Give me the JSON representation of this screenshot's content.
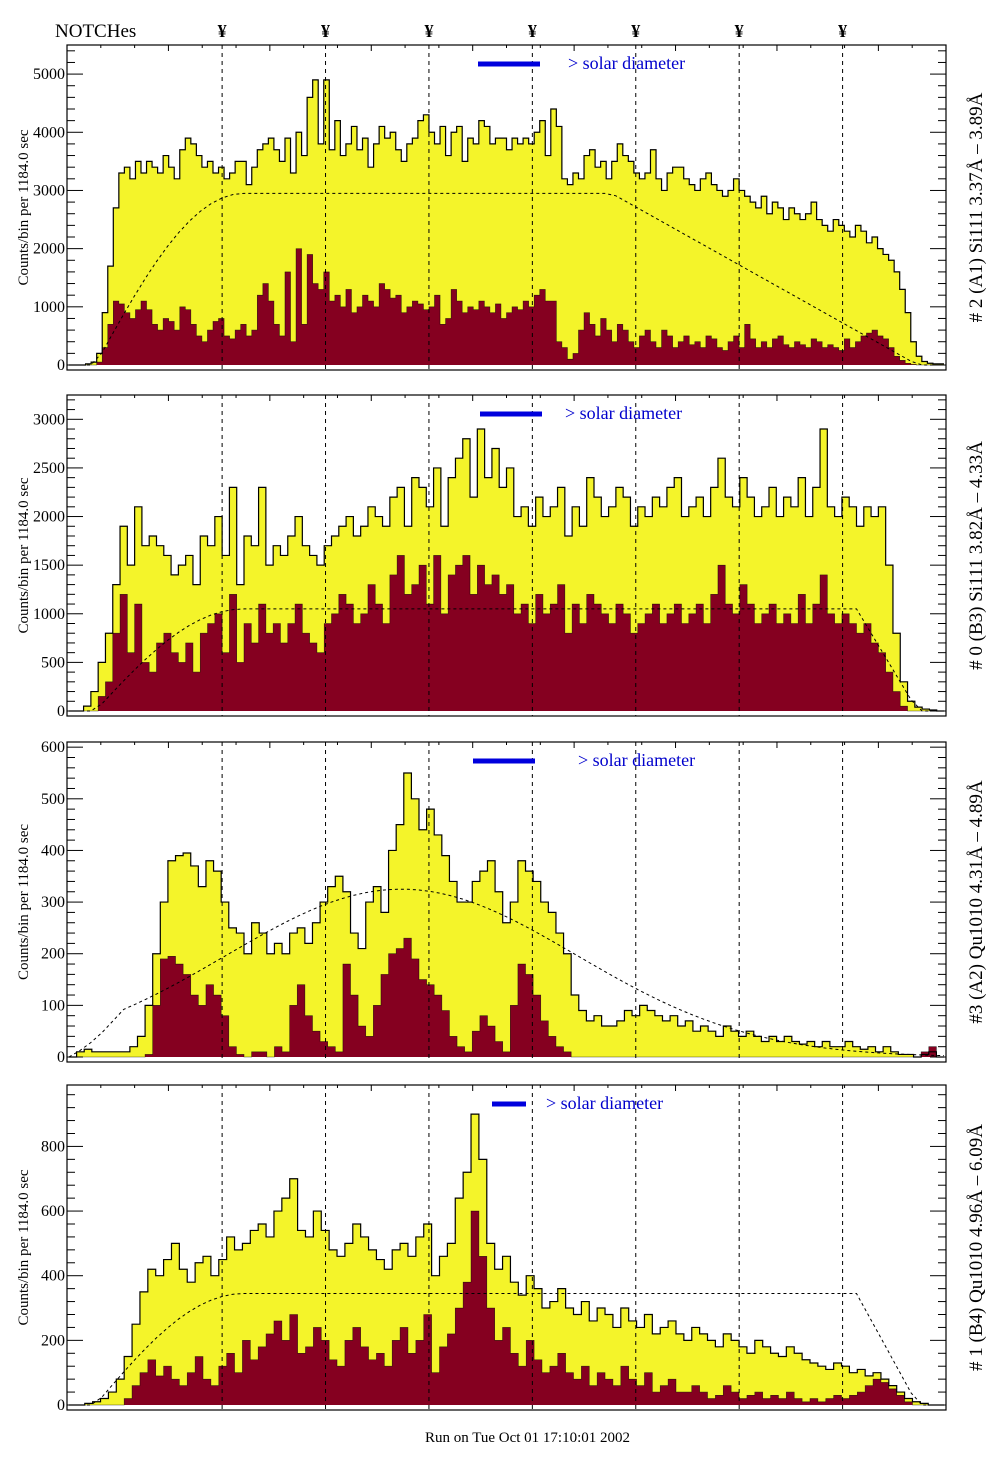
{
  "header": {
    "notch_label": "NOTCHes",
    "notch_symbol": "¥",
    "notch_positions": [
      15,
      25,
      35,
      45,
      55,
      65,
      75
    ]
  },
  "footer": {
    "run_label": "Run on Tue Oct 01 17:10:01 2002"
  },
  "colors": {
    "total_fill": "#f4f42a",
    "filtered_fill": "#850020",
    "legend_line": "#0000dd",
    "legend_text": "#0000cc",
    "annotation_blue": "#0000cc",
    "annotation_purple": "#660066"
  },
  "chart_data": [
    {
      "type": "area",
      "title": "# 2 (A1) Si111  3.37Å – 3.89Å",
      "ylabel": "Counts/bin per   1184.0 sec",
      "ylim": [
        0,
        5500
      ],
      "yticks": [
        0,
        1000,
        2000,
        3000,
        4000,
        5000
      ],
      "legend": "> solar diameter",
      "model_plateau": 2950,
      "series": [
        {
          "name": "total",
          "values": [
            0,
            0,
            0,
            20,
            50,
            200,
            900,
            1700,
            2700,
            3300,
            3400,
            3200,
            3500,
            3300,
            3500,
            3400,
            3300,
            3600,
            3400,
            3200,
            3700,
            3900,
            3800,
            3600,
            3400,
            3500,
            3300,
            3400,
            3200,
            3300,
            3500,
            3500,
            3100,
            3400,
            3700,
            3800,
            3900,
            3700,
            3500,
            3900,
            3300,
            4000,
            3600,
            4600,
            4900,
            3800,
            4900,
            3700,
            4200,
            3600,
            3800,
            4100,
            3700,
            3900,
            3400,
            3800,
            4100,
            3900,
            4000,
            3700,
            3500,
            3800,
            3900,
            4200,
            4300,
            4000,
            3800,
            4100,
            3600,
            4000,
            4100,
            3500,
            3900,
            3800,
            4200,
            4100,
            3800,
            3900,
            3900,
            3700,
            3900,
            3800,
            3900,
            3800,
            4000,
            4200,
            3600,
            4400,
            4100,
            3200,
            3100,
            3300,
            3200,
            3600,
            3700,
            3400,
            3500,
            3200,
            3500,
            3800,
            3600,
            3500,
            3300,
            3200,
            3300,
            3700,
            3200,
            3000,
            3300,
            3400,
            3400,
            3200,
            3100,
            3000,
            3200,
            3300,
            3100,
            3000,
            2900,
            3000,
            3200,
            3000,
            2900,
            2800,
            2700,
            2900,
            2600,
            2800,
            2700,
            2500,
            2700,
            2600,
            2500,
            2600,
            2800,
            2500,
            2400,
            2300,
            2500,
            2400,
            2300,
            2200,
            2400,
            2300,
            2100,
            2200,
            2000,
            1900,
            1800,
            1600,
            1300,
            900,
            400,
            150,
            60,
            30,
            20,
            20
          ]
        },
        {
          "name": "filtered",
          "values": [
            0,
            0,
            0,
            0,
            0,
            50,
            300,
            700,
            1100,
            1050,
            900,
            800,
            950,
            1100,
            950,
            700,
            600,
            800,
            750,
            600,
            1000,
            950,
            700,
            500,
            400,
            600,
            750,
            800,
            500,
            450,
            600,
            700,
            500,
            600,
            1200,
            1400,
            1100,
            700,
            500,
            1600,
            400,
            2000,
            700,
            1900,
            1400,
            1300,
            1600,
            1100,
            1200,
            1000,
            1300,
            900,
            1000,
            1200,
            1100,
            1000,
            1400,
            1300,
            1150,
            1200,
            900,
            1000,
            1100,
            1050,
            950,
            1000,
            1200,
            700,
            800,
            1300,
            1100,
            900,
            1000,
            950,
            1100,
            1000,
            900,
            1050,
            800,
            900,
            1000,
            950,
            1100,
            1000,
            1200,
            1300,
            1100,
            1100,
            400,
            300,
            100,
            200,
            600,
            900,
            700,
            500,
            800,
            600,
            400,
            700,
            600,
            400,
            300,
            500,
            600,
            400,
            300,
            600,
            500,
            300,
            400,
            500,
            350,
            400,
            300,
            500,
            450,
            300,
            250,
            400,
            500,
            300,
            700,
            450,
            300,
            400,
            300,
            450,
            500,
            350,
            300,
            400,
            350,
            300,
            450,
            400,
            300,
            350,
            300,
            250,
            450,
            300,
            400,
            500,
            550,
            600,
            500,
            450,
            300,
            150,
            80,
            30,
            10,
            0,
            0,
            0,
            0,
            0
          ]
        }
      ]
    },
    {
      "type": "area",
      "title": "# 0 (B3) Si111  3.82Å – 4.33Å",
      "ylabel": "Counts/bin per   1184.0 sec",
      "ylim": [
        0,
        3250
      ],
      "yticks": [
        0,
        500,
        1000,
        1500,
        2000,
        2500,
        3000
      ],
      "legend": "> solar diameter",
      "model_plateau": 1050,
      "series": [
        {
          "name": "total",
          "values": [
            0,
            0,
            50,
            200,
            500,
            800,
            1300,
            1900,
            1500,
            2100,
            1700,
            1800,
            1700,
            1600,
            1400,
            1500,
            1600,
            1300,
            1800,
            1700,
            2000,
            1600,
            2300,
            1300,
            1800,
            1700,
            2300,
            1500,
            1700,
            1600,
            1800,
            2000,
            1700,
            1600,
            1500,
            1700,
            1800,
            1900,
            2000,
            1800,
            1900,
            2100,
            2000,
            1900,
            2200,
            2300,
            1900,
            2400,
            2300,
            2100,
            2500,
            1900,
            2400,
            2600,
            2800,
            2200,
            2900,
            2400,
            2700,
            2300,
            2500,
            2000,
            2100,
            1900,
            2200,
            2000,
            2100,
            2300,
            1800,
            2100,
            1900,
            2400,
            2200,
            2000,
            2100,
            2300,
            2200,
            1900,
            2100,
            2000,
            2200,
            2100,
            2300,
            2400,
            2000,
            2100,
            2200,
            2000,
            2300,
            2600,
            2200,
            2100,
            2400,
            2200,
            2000,
            2100,
            2300,
            2000,
            2200,
            2100,
            2400,
            2000,
            2300,
            2900,
            2100,
            2000,
            2200,
            2100,
            1900,
            2100,
            2000,
            2100,
            1500,
            800,
            300,
            100,
            40,
            20,
            10,
            0
          ]
        },
        {
          "name": "filtered",
          "values": [
            0,
            0,
            0,
            0,
            150,
            300,
            800,
            1200,
            600,
            1100,
            500,
            400,
            700,
            800,
            600,
            500,
            700,
            400,
            800,
            900,
            1000,
            600,
            1200,
            500,
            900,
            700,
            1100,
            800,
            900,
            700,
            900,
            1100,
            800,
            700,
            600,
            900,
            1000,
            1200,
            1100,
            900,
            1000,
            1300,
            1100,
            900,
            1400,
            1600,
            1200,
            1300,
            1500,
            1100,
            1600,
            1000,
            1400,
            1500,
            1600,
            1200,
            1500,
            1300,
            1400,
            1200,
            1300,
            1000,
            1100,
            900,
            1200,
            1000,
            1100,
            1300,
            800,
            1100,
            900,
            1200,
            1100,
            1000,
            900,
            1100,
            1000,
            800,
            900,
            1000,
            1100,
            900,
            1000,
            1100,
            900,
            1000,
            1100,
            900,
            1200,
            1500,
            1100,
            1000,
            1300,
            1100,
            900,
            1000,
            1100,
            900,
            1000,
            900,
            1200,
            900,
            1100,
            1400,
            1000,
            900,
            1000,
            900,
            800,
            900,
            700,
            600,
            400,
            200,
            50,
            0,
            0,
            0,
            0,
            0
          ]
        }
      ]
    },
    {
      "type": "area",
      "title": "#3 (A2) Qu1010  4.31Å – 4.89Å",
      "ylabel": "Counts/bin per   1184.0 sec",
      "ylim": [
        0,
        610
      ],
      "yticks": [
        0,
        100,
        200,
        300,
        400,
        500,
        600
      ],
      "legend": "> solar diameter",
      "model_peak": 325,
      "series": [
        {
          "name": "total",
          "values": [
            0,
            10,
            15,
            10,
            10,
            10,
            10,
            10,
            20,
            40,
            100,
            200,
            300,
            380,
            390,
            395,
            370,
            330,
            380,
            360,
            300,
            250,
            240,
            200,
            260,
            240,
            200,
            220,
            200,
            240,
            250,
            220,
            260,
            300,
            330,
            350,
            320,
            240,
            210,
            300,
            330,
            280,
            400,
            450,
            550,
            500,
            440,
            480,
            430,
            390,
            340,
            300,
            300,
            340,
            360,
            380,
            320,
            260,
            300,
            380,
            360,
            340,
            300,
            280,
            240,
            200,
            120,
            90,
            70,
            80,
            60,
            60,
            70,
            90,
            80,
            100,
            90,
            80,
            70,
            80,
            60,
            70,
            50,
            60,
            50,
            40,
            60,
            50,
            40,
            50,
            40,
            30,
            40,
            30,
            40,
            30,
            25,
            30,
            20,
            30,
            20,
            20,
            30,
            20,
            15,
            20,
            10,
            20,
            10,
            5,
            5,
            0,
            5,
            10,
            0
          ]
        },
        {
          "name": "filtered",
          "values": [
            0,
            0,
            0,
            0,
            0,
            0,
            0,
            0,
            0,
            0,
            5,
            100,
            190,
            195,
            180,
            160,
            120,
            100,
            140,
            120,
            80,
            20,
            5,
            0,
            10,
            10,
            0,
            20,
            10,
            100,
            140,
            80,
            50,
            30,
            20,
            10,
            180,
            120,
            60,
            40,
            100,
            160,
            200,
            210,
            230,
            190,
            150,
            140,
            120,
            90,
            40,
            20,
            10,
            50,
            80,
            60,
            30,
            10,
            100,
            180,
            160,
            120,
            70,
            40,
            20,
            10,
            0,
            0,
            0,
            0,
            0,
            0,
            0,
            0,
            0,
            0,
            0,
            0,
            0,
            0,
            0,
            0,
            0,
            0,
            0,
            0,
            0,
            0,
            0,
            0,
            0,
            0,
            0,
            0,
            0,
            0,
            0,
            0,
            0,
            0,
            0,
            0,
            0,
            0,
            0,
            0,
            0,
            0,
            0,
            0,
            0,
            0,
            10,
            20,
            0
          ]
        }
      ]
    },
    {
      "type": "area",
      "title": "# 1 (B4) Qu1010 4.96Å – 6.09Å",
      "ylabel": "Counts/bin per   1184.0 sec",
      "ylim": [
        0,
        990
      ],
      "yticks": [
        0,
        200,
        400,
        600,
        800
      ],
      "legend": "> solar diameter",
      "model_plateau": 345,
      "series": [
        {
          "name": "total",
          "values": [
            0,
            0,
            5,
            10,
            20,
            40,
            80,
            150,
            250,
            350,
            420,
            400,
            450,
            500,
            420,
            380,
            440,
            460,
            400,
            450,
            520,
            480,
            500,
            540,
            560,
            520,
            600,
            640,
            700,
            540,
            520,
            600,
            540,
            480,
            460,
            500,
            560,
            520,
            480,
            450,
            420,
            480,
            500,
            460,
            520,
            560,
            400,
            460,
            500,
            640,
            720,
            900,
            760,
            500,
            420,
            460,
            380,
            340,
            400,
            360,
            300,
            320,
            360,
            300,
            280,
            320,
            260,
            300,
            280,
            240,
            300,
            260,
            240,
            280,
            220,
            240,
            260,
            220,
            200,
            240,
            220,
            200,
            180,
            220,
            200,
            180,
            160,
            200,
            180,
            160,
            150,
            180,
            160,
            140,
            130,
            120,
            110,
            130,
            120,
            100,
            110,
            90,
            100,
            80,
            60,
            40,
            20,
            10,
            5,
            0,
            0
          ]
        },
        {
          "name": "filtered",
          "values": [
            0,
            0,
            0,
            0,
            0,
            0,
            0,
            20,
            60,
            100,
            140,
            90,
            120,
            80,
            60,
            100,
            150,
            80,
            60,
            120,
            160,
            100,
            200,
            140,
            180,
            220,
            260,
            200,
            280,
            160,
            180,
            240,
            200,
            140,
            120,
            200,
            240,
            180,
            140,
            160,
            120,
            200,
            240,
            160,
            200,
            280,
            100,
            180,
            220,
            300,
            380,
            600,
            460,
            300,
            200,
            240,
            160,
            120,
            200,
            140,
            100,
            120,
            160,
            100,
            80,
            120,
            60,
            100,
            80,
            60,
            120,
            80,
            60,
            100,
            40,
            60,
            80,
            40,
            40,
            60,
            40,
            20,
            30,
            60,
            40,
            20,
            30,
            40,
            20,
            30,
            20,
            40,
            20,
            10,
            20,
            10,
            20,
            30,
            20,
            30,
            40,
            60,
            80,
            70,
            50,
            30,
            10,
            0,
            0,
            0,
            0
          ]
        }
      ]
    }
  ]
}
